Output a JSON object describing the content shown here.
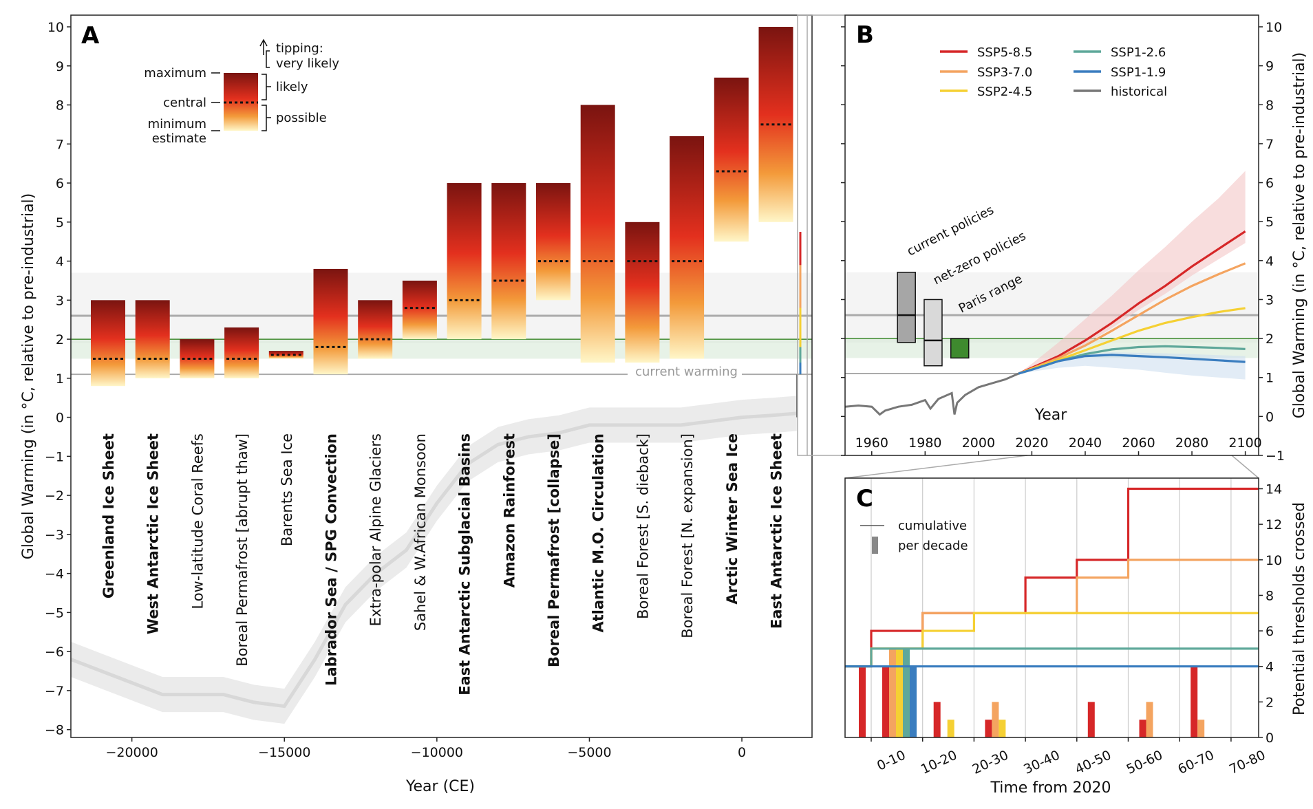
{
  "colors": {
    "ssp585": "#d62728",
    "ssp370": "#f4a460",
    "ssp245": "#f5d033",
    "ssp126": "#5fa89a",
    "ssp119": "#3a7dbf",
    "historical": "#777777",
    "current_warming_line": "#aaaaaa",
    "paris_fill": "#3e8a2e",
    "bar_top": "#7a1410",
    "bar_mid": "#e3301e",
    "bar_bottom": "#fff6c8"
  },
  "chart_data": [
    {
      "panel": "A",
      "type": "bar",
      "xlabel": "Year (CE)",
      "ylabel": "Global Warming (in °C, relative to pre-industrial)",
      "ylim": [
        -8.2,
        10.3
      ],
      "xlim": [
        -22000,
        2300
      ],
      "x_ticks": [
        "−20000",
        "−15000",
        "−10000",
        "−5000",
        "0"
      ],
      "x_tick_values": [
        -20000,
        -15000,
        -10000,
        -5000,
        0
      ],
      "y_ticks": [
        "−8",
        "−7",
        "−6",
        "−5",
        "−4",
        "−3",
        "−2",
        "−1",
        "0",
        "1",
        "2",
        "3",
        "4",
        "5",
        "6",
        "7",
        "8",
        "9",
        "10"
      ],
      "current_warming_label": "current warming",
      "current_warming": 1.1,
      "paris_band": [
        1.5,
        2.0
      ],
      "current_policies_band": [
        1.9,
        3.7
      ],
      "current_policies_central": 2.6,
      "legend_key": {
        "maximum": "maximum",
        "central": "central",
        "minimum": "minimum",
        "estimate": "estimate",
        "tipping": "tipping:",
        "very_likely": "very likely",
        "likely": "likely",
        "possible": "possible"
      },
      "bars": [
        {
          "name": "Greenland Ice Sheet",
          "bold": true,
          "min": 0.8,
          "central": 1.5,
          "max": 3.0
        },
        {
          "name": "West Antarctic Ice Sheet",
          "bold": true,
          "min": 1.0,
          "central": 1.5,
          "max": 3.0
        },
        {
          "name": "Low-latitude Coral Reefs",
          "bold": false,
          "min": 1.0,
          "central": 1.5,
          "max": 2.0
        },
        {
          "name": "Boreal Permafrost [abrupt thaw]",
          "bold": false,
          "min": 1.0,
          "central": 1.5,
          "max": 2.3
        },
        {
          "name": "Barents Sea Ice",
          "bold": false,
          "min": 1.5,
          "central": 1.6,
          "max": 1.7
        },
        {
          "name": "Labrador Sea / SPG Convection",
          "bold": true,
          "min": 1.1,
          "central": 1.8,
          "max": 3.8
        },
        {
          "name": "Extra-polar Alpine Glaciers",
          "bold": false,
          "min": 1.5,
          "central": 2.0,
          "max": 3.0
        },
        {
          "name": "Sahel & W.African Monsoon",
          "bold": false,
          "min": 2.0,
          "central": 2.8,
          "max": 3.5
        },
        {
          "name": "East Antarctic Subglacial Basins",
          "bold": true,
          "min": 2.0,
          "central": 3.0,
          "max": 6.0
        },
        {
          "name": "Amazon Rainforest",
          "bold": true,
          "min": 2.0,
          "central": 3.5,
          "max": 6.0
        },
        {
          "name": "Boreal Permafrost [collapse]",
          "bold": true,
          "min": 3.0,
          "central": 4.0,
          "max": 6.0
        },
        {
          "name": "Atlantic M.O. Circulation",
          "bold": true,
          "min": 1.4,
          "central": 4.0,
          "max": 8.0
        },
        {
          "name": "Boreal Forest [S. dieback]",
          "bold": false,
          "min": 1.4,
          "central": 4.0,
          "max": 5.0
        },
        {
          "name": "Boreal Forest [N. expansion]",
          "bold": false,
          "min": 1.5,
          "central": 4.0,
          "max": 7.2
        },
        {
          "name": "Arctic Winter Sea Ice",
          "bold": true,
          "min": 4.5,
          "central": 6.3,
          "max": 8.7
        },
        {
          "name": "East Antarctic Ice Sheet",
          "bold": true,
          "min": 5.0,
          "central": 7.5,
          "max": 10.0
        }
      ],
      "paleo_record": {
        "years": [
          -22000,
          -21000,
          -20000,
          -19000,
          -18000,
          -17000,
          -16000,
          -15000,
          -14000,
          -13000,
          -12000,
          -11000,
          -10000,
          -9000,
          -8000,
          -7000,
          -6000,
          -5000,
          -4000,
          -3000,
          -2000,
          -1000,
          0,
          1000,
          1800
        ],
        "values": [
          -6.2,
          -6.5,
          -6.8,
          -7.1,
          -7.1,
          -7.1,
          -7.3,
          -7.4,
          -6.2,
          -4.8,
          -4.0,
          -3.4,
          -2.2,
          -1.2,
          -0.7,
          -0.5,
          -0.4,
          -0.2,
          -0.2,
          -0.2,
          -0.2,
          -0.1,
          0.0,
          0.05,
          0.1
        ]
      }
    },
    {
      "panel": "B",
      "type": "line",
      "xlabel": "Year",
      "ylabel": "Global Warming (in °C, relative to pre-industrial)",
      "xlim": [
        1950,
        2105
      ],
      "ylim": [
        -1.0,
        10.3
      ],
      "x_ticks": [
        "1960",
        "1980",
        "2000",
        "2020",
        "2040",
        "2060",
        "2080",
        "2100"
      ],
      "x_tick_values": [
        1960,
        1980,
        2000,
        2020,
        2040,
        2060,
        2080,
        2100
      ],
      "y_ticks": [
        "−1",
        "0",
        "1",
        "2",
        "3",
        "4",
        "5",
        "6",
        "7",
        "8",
        "9",
        "10"
      ],
      "annotations": {
        "current_policies": "current policies",
        "net_zero": "net-zero policies",
        "paris": "Paris range"
      },
      "policy_boxes": [
        {
          "name": "current policies",
          "x": 1973,
          "low": 1.9,
          "high": 3.7,
          "central": 2.6
        },
        {
          "name": "net-zero policies",
          "x": 1983,
          "low": 1.3,
          "high": 3.0,
          "central": 1.95
        },
        {
          "name": "Paris range",
          "x": 1993,
          "low": 1.5,
          "high": 2.0
        }
      ],
      "series": [
        {
          "name": "SSP5-8.5",
          "color_key": "ssp585",
          "x": [
            2015,
            2020,
            2030,
            2040,
            2050,
            2060,
            2070,
            2080,
            2090,
            2100
          ],
          "values": [
            1.1,
            1.25,
            1.55,
            1.95,
            2.4,
            2.9,
            3.35,
            3.85,
            4.3,
            4.75
          ],
          "band_high": [
            1.1,
            1.35,
            1.9,
            2.5,
            3.1,
            3.75,
            4.35,
            5.0,
            5.6,
            6.3
          ]
        },
        {
          "name": "SSP3-7.0",
          "color_key": "ssp370",
          "x": [
            2015,
            2020,
            2030,
            2040,
            2050,
            2060,
            2070,
            2080,
            2090,
            2100
          ],
          "values": [
            1.1,
            1.23,
            1.5,
            1.82,
            2.2,
            2.6,
            3.0,
            3.35,
            3.65,
            3.93
          ]
        },
        {
          "name": "SSP2-4.5",
          "color_key": "ssp245",
          "x": [
            2015,
            2020,
            2030,
            2040,
            2050,
            2060,
            2070,
            2080,
            2090,
            2100
          ],
          "values": [
            1.1,
            1.22,
            1.45,
            1.7,
            1.95,
            2.2,
            2.4,
            2.55,
            2.68,
            2.78
          ]
        },
        {
          "name": "SSP1-2.6",
          "color_key": "ssp126",
          "x": [
            2015,
            2020,
            2030,
            2040,
            2050,
            2060,
            2070,
            2080,
            2090,
            2100
          ],
          "values": [
            1.1,
            1.2,
            1.42,
            1.6,
            1.72,
            1.78,
            1.8,
            1.78,
            1.76,
            1.73
          ]
        },
        {
          "name": "SSP1-1.9",
          "color_key": "ssp119",
          "x": [
            2015,
            2020,
            2030,
            2040,
            2050,
            2060,
            2070,
            2080,
            2090,
            2100
          ],
          "values": [
            1.1,
            1.2,
            1.42,
            1.55,
            1.58,
            1.55,
            1.52,
            1.48,
            1.44,
            1.4
          ],
          "band_low": [
            1.1,
            1.15,
            1.25,
            1.3,
            1.25,
            1.2,
            1.12,
            1.05,
            1.0,
            0.95
          ]
        },
        {
          "name": "historical",
          "color_key": "historical",
          "x": [
            1950,
            1955,
            1960,
            1963,
            1965,
            1970,
            1975,
            1980,
            1982,
            1985,
            1990,
            1991,
            1992,
            1995,
            2000,
            2005,
            2010,
            2015
          ],
          "values": [
            0.25,
            0.28,
            0.25,
            0.05,
            0.15,
            0.25,
            0.3,
            0.42,
            0.2,
            0.45,
            0.6,
            0.05,
            0.35,
            0.55,
            0.75,
            0.85,
            0.95,
            1.1
          ]
        }
      ]
    },
    {
      "panel": "C",
      "type": "bar",
      "xlabel": "Time from 2020",
      "ylabel": "Potential thresholds crossed",
      "ylim": [
        0,
        14.6
      ],
      "categories": [
        "0-10",
        "10-20",
        "20-30",
        "30-40",
        "40-50",
        "50-60",
        "60-70",
        "70-80"
      ],
      "y_ticks": [
        "0",
        "2",
        "4",
        "6",
        "8",
        "10",
        "12",
        "14"
      ],
      "legend": {
        "cumulative": "cumulative",
        "per_decade": "per decade"
      },
      "cumulative": [
        {
          "name": "SSP5-8.5",
          "color_key": "ssp585",
          "steps": [
            [
              -0.5,
              4
            ],
            [
              0,
              6
            ],
            [
              1,
              7
            ],
            [
              3,
              9
            ],
            [
              4,
              10
            ],
            [
              5,
              14
            ],
            [
              8.5,
              14
            ]
          ]
        },
        {
          "name": "SSP3-7.0",
          "color_key": "ssp370",
          "steps": [
            [
              -0.5,
              4
            ],
            [
              0,
              5
            ],
            [
              1,
              7
            ],
            [
              4,
              9
            ],
            [
              5,
              10
            ],
            [
              8.5,
              10
            ]
          ]
        },
        {
          "name": "SSP2-4.5",
          "color_key": "ssp245",
          "steps": [
            [
              -0.5,
              4
            ],
            [
              0,
              5
            ],
            [
              1,
              6
            ],
            [
              2,
              7
            ],
            [
              8.5,
              7
            ]
          ]
        },
        {
          "name": "SSP1-2.6",
          "color_key": "ssp126",
          "steps": [
            [
              -0.5,
              4
            ],
            [
              0,
              5
            ],
            [
              8.5,
              5
            ]
          ]
        },
        {
          "name": "SSP1-1.9",
          "color_key": "ssp119",
          "steps": [
            [
              -0.5,
              4
            ],
            [
              8.5,
              4
            ]
          ]
        }
      ],
      "per_decade": [
        {
          "name": "SSP5-8.5",
          "color_key": "ssp585",
          "values": [
            4,
            2,
            1,
            0,
            2,
            1,
            4,
            0
          ],
          "pre": 4
        },
        {
          "name": "SSP3-7.0",
          "color_key": "ssp370",
          "values": [
            5,
            0,
            2,
            0,
            0,
            2,
            1,
            0
          ]
        },
        {
          "name": "SSP2-4.5",
          "color_key": "ssp245",
          "values": [
            5,
            1,
            1,
            0,
            0,
            0,
            0,
            0
          ]
        },
        {
          "name": "SSP1-2.6",
          "color_key": "ssp126",
          "values": [
            5,
            0,
            0,
            0,
            0,
            0,
            0,
            0
          ]
        },
        {
          "name": "SSP1-1.9",
          "color_key": "ssp119",
          "values": [
            4,
            0,
            0,
            0,
            0,
            0,
            0,
            0
          ]
        }
      ]
    }
  ]
}
